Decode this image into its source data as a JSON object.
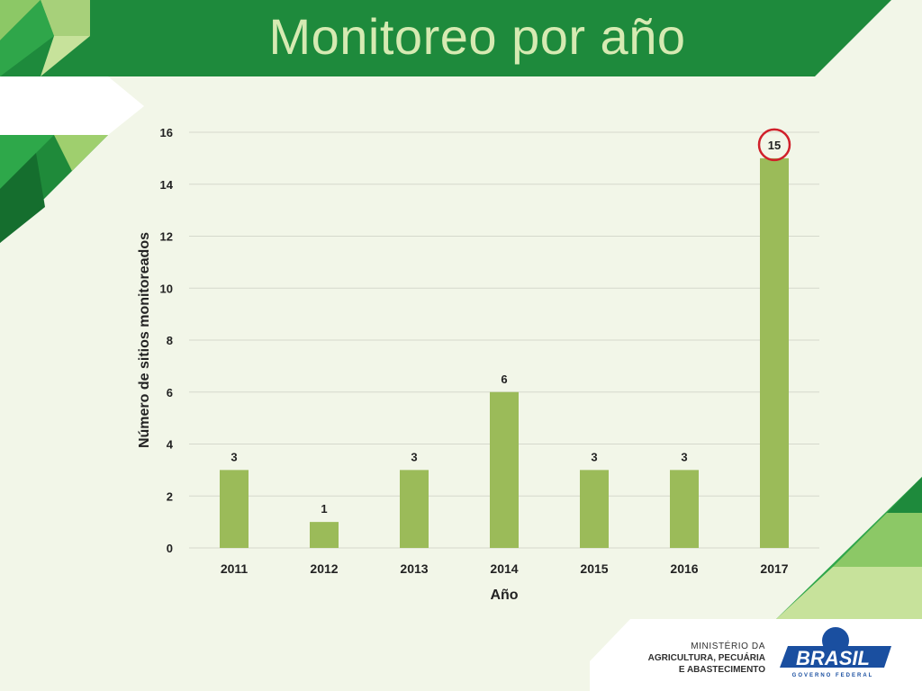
{
  "slide": {
    "title": "Monitoreo por año",
    "colors": {
      "header": "#1e8a3c",
      "bar": "#9bbb59",
      "highlight": "#d0202a",
      "background": "#f2f6e8"
    }
  },
  "footer": {
    "ministry_line1": "MINISTÉRIO DA",
    "ministry_line2": "AGRICULTURA, PECUÁRIA",
    "ministry_line3": "E ABASTECIMENTO",
    "logo_word": "BRASIL",
    "logo_sub": "GOVERNO FEDERAL"
  },
  "chart_data": {
    "type": "bar",
    "categories": [
      "2011",
      "2012",
      "2013",
      "2014",
      "2015",
      "2016",
      "2017"
    ],
    "values": [
      3,
      1,
      3,
      6,
      3,
      3,
      15
    ],
    "data_labels": [
      "3",
      "1",
      "3",
      "6",
      "3",
      "3",
      "15"
    ],
    "highlighted": "2017",
    "xlabel": "Año",
    "ylabel": "Número de sitios monitoreados",
    "ylim": [
      0,
      16
    ],
    "yticks": [
      "0",
      "2",
      "4",
      "6",
      "8",
      "10",
      "12",
      "14",
      "16"
    ],
    "grid": true,
    "legend": "none"
  }
}
